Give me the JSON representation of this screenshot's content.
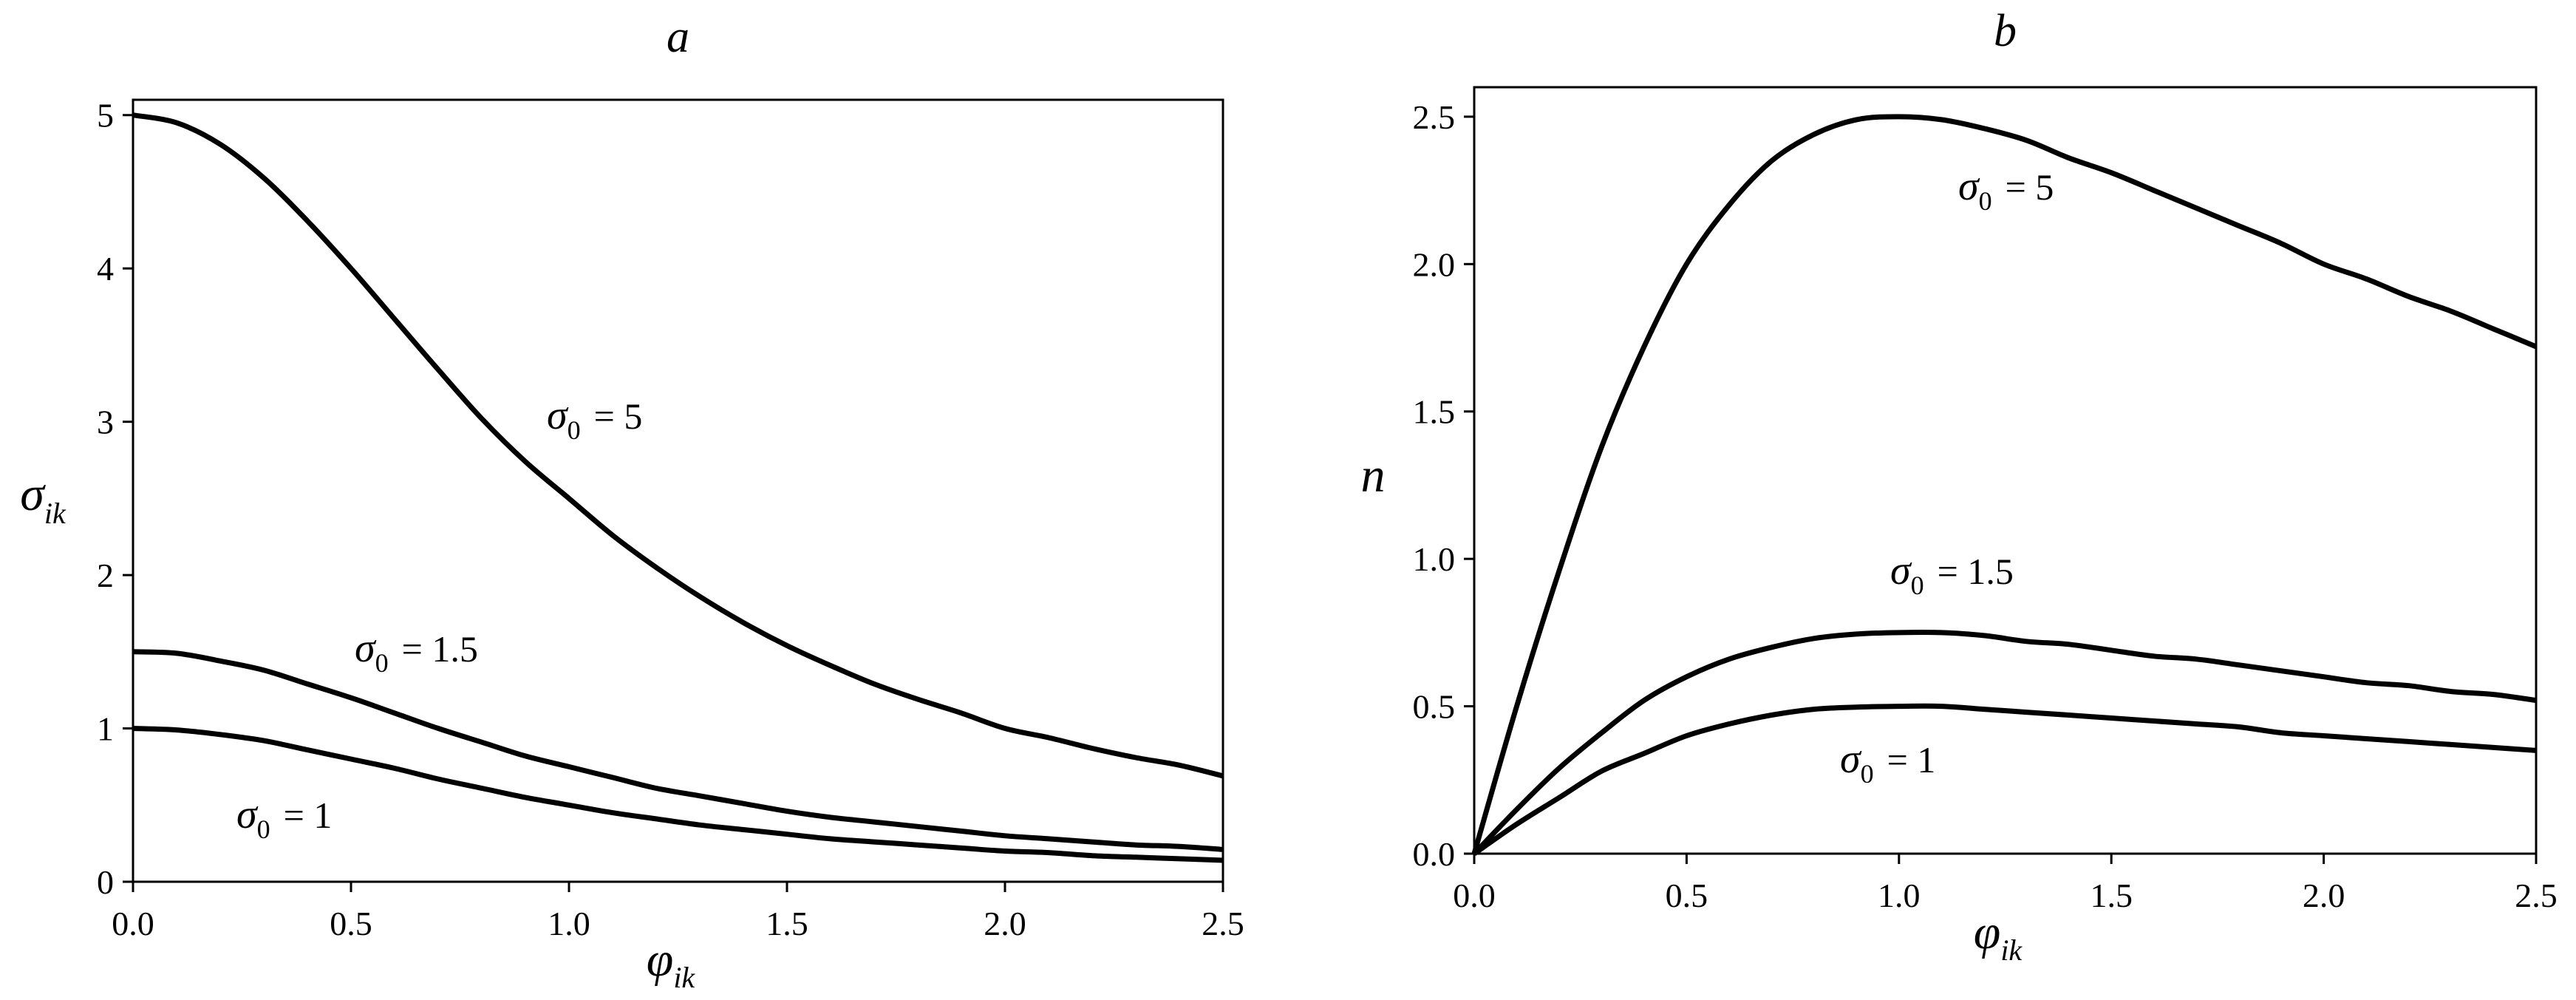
{
  "chart_data": [
    {
      "type": "line",
      "title": "a",
      "xlabel": "φ",
      "xlabel_sub": "ik",
      "ylabel": "σ",
      "ylabel_sub": "ik",
      "xlim": [
        0,
        2.5
      ],
      "ylim": [
        0,
        5.1
      ],
      "xticks": [
        0.0,
        0.5,
        1.0,
        1.5,
        2.0,
        2.5
      ],
      "xtick_labels": [
        "0.0",
        "0.5",
        "1.0",
        "1.5",
        "2.0",
        "2.5"
      ],
      "yticks": [
        0,
        1,
        2,
        3,
        4,
        5
      ],
      "ytick_labels": [
        "0",
        "1",
        "2",
        "3",
        "4",
        "5"
      ],
      "grid": false,
      "x": [
        0,
        0.1,
        0.2,
        0.3,
        0.4,
        0.5,
        0.6,
        0.7,
        0.8,
        0.9,
        1.0,
        1.1,
        1.2,
        1.3,
        1.4,
        1.5,
        1.6,
        1.7,
        1.8,
        1.9,
        2.0,
        2.1,
        2.2,
        2.3,
        2.4,
        2.5
      ],
      "series": [
        {
          "sigma0": "5",
          "label_pre": "σ",
          "label_sub": "0",
          "label_post": "= 5",
          "values": [
            5.0,
            4.95,
            4.81,
            4.59,
            4.31,
            4.0,
            3.67,
            3.34,
            3.02,
            2.74,
            2.5,
            2.26,
            2.05,
            1.86,
            1.69,
            1.54,
            1.41,
            1.29,
            1.19,
            1.1,
            1.0,
            0.94,
            0.87,
            0.81,
            0.76,
            0.69
          ]
        },
        {
          "sigma0": "1.5",
          "label_pre": "σ",
          "label_sub": "0",
          "label_post": "= 1.5",
          "values": [
            1.5,
            1.49,
            1.44,
            1.38,
            1.29,
            1.2,
            1.1,
            1.0,
            0.91,
            0.82,
            0.75,
            0.68,
            0.61,
            0.56,
            0.51,
            0.46,
            0.42,
            0.39,
            0.36,
            0.33,
            0.3,
            0.28,
            0.26,
            0.24,
            0.23,
            0.21
          ]
        },
        {
          "sigma0": "1",
          "label_pre": "σ",
          "label_sub": "0",
          "label_post": "= 1",
          "values": [
            1.0,
            0.99,
            0.96,
            0.92,
            0.86,
            0.8,
            0.74,
            0.67,
            0.61,
            0.55,
            0.5,
            0.45,
            0.41,
            0.37,
            0.34,
            0.31,
            0.28,
            0.26,
            0.24,
            0.22,
            0.2,
            0.19,
            0.17,
            0.16,
            0.15,
            0.14
          ]
        }
      ]
    },
    {
      "type": "line",
      "title": "b",
      "xlabel": "φ",
      "xlabel_sub": "ik",
      "ylabel": "n",
      "xlim": [
        0,
        2.5
      ],
      "ylim": [
        0,
        2.6
      ],
      "xticks": [
        0.0,
        0.5,
        1.0,
        1.5,
        2.0,
        2.5
      ],
      "xtick_labels": [
        "0.0",
        "0.5",
        "1.0",
        "1.5",
        "2.0",
        "2.5"
      ],
      "yticks": [
        0.0,
        0.5,
        1.0,
        1.5,
        2.0,
        2.5
      ],
      "ytick_labels": [
        "0.0",
        "0.5",
        "1.0",
        "1.5",
        "2.0",
        "2.5"
      ],
      "grid": false,
      "x": [
        0,
        0.1,
        0.2,
        0.3,
        0.4,
        0.5,
        0.6,
        0.7,
        0.8,
        0.9,
        1.0,
        1.1,
        1.2,
        1.3,
        1.4,
        1.5,
        1.6,
        1.7,
        1.8,
        1.9,
        2.0,
        2.1,
        2.2,
        2.3,
        2.4,
        2.5
      ],
      "series": [
        {
          "sigma0": "5",
          "label_pre": "σ",
          "label_sub": "0",
          "label_post": "= 5",
          "values": [
            0.0,
            0.5,
            0.96,
            1.38,
            1.72,
            2.0,
            2.2,
            2.35,
            2.44,
            2.49,
            2.5,
            2.49,
            2.46,
            2.42,
            2.36,
            2.31,
            2.25,
            2.19,
            2.13,
            2.07,
            2.0,
            1.95,
            1.89,
            1.84,
            1.78,
            1.72
          ]
        },
        {
          "sigma0": "1.5",
          "label_pre": "σ",
          "label_sub": "0",
          "label_post": "= 1.5",
          "values": [
            0.0,
            0.15,
            0.29,
            0.41,
            0.52,
            0.6,
            0.66,
            0.7,
            0.73,
            0.745,
            0.75,
            0.75,
            0.74,
            0.72,
            0.71,
            0.69,
            0.67,
            0.66,
            0.64,
            0.62,
            0.6,
            0.58,
            0.57,
            0.55,
            0.54,
            0.52
          ]
        },
        {
          "sigma0": "1",
          "label_pre": "σ",
          "label_sub": "0",
          "label_post": "= 1",
          "values": [
            0.0,
            0.1,
            0.19,
            0.28,
            0.34,
            0.4,
            0.44,
            0.47,
            0.49,
            0.497,
            0.5,
            0.5,
            0.49,
            0.48,
            0.47,
            0.46,
            0.45,
            0.44,
            0.43,
            0.41,
            0.4,
            0.39,
            0.38,
            0.37,
            0.36,
            0.35
          ]
        }
      ]
    }
  ]
}
